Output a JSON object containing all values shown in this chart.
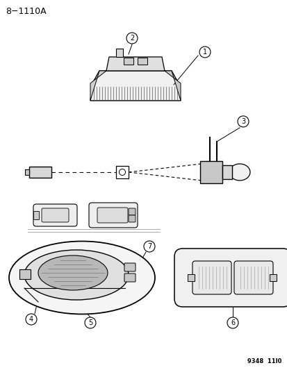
{
  "title": "8−1110A",
  "footer": "9348  11I0",
  "background_color": "#ffffff",
  "line_color": "#000000",
  "fig_width": 4.14,
  "fig_height": 5.33,
  "dpi": 100
}
